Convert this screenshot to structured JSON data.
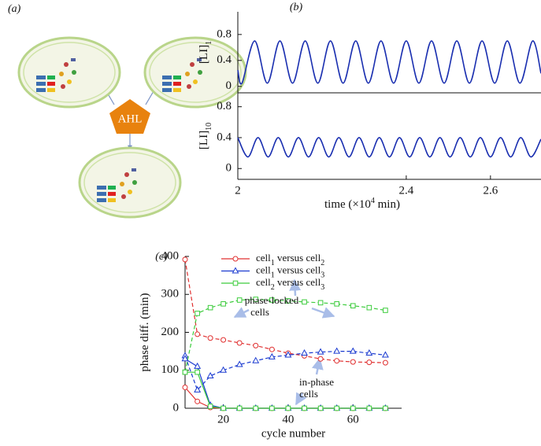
{
  "diagram": {
    "label": "(a)",
    "hub": "AHL"
  },
  "chart_data": [
    {
      "type": "line",
      "panel_label": "(b)",
      "ylabel": "[LI]1",
      "smooth": true,
      "xlim": [
        2.0,
        2.72
      ],
      "ylim": [
        -0.1,
        1.15
      ],
      "yticks": [
        0,
        0.4,
        0.8
      ],
      "series": [
        {
          "color": "#1a2fb0",
          "x": [
            2.0,
            2.01,
            2.04,
            2.07,
            2.1,
            2.13,
            2.16,
            2.19,
            2.22,
            2.25,
            2.28,
            2.31,
            2.34,
            2.37,
            2.4,
            2.43,
            2.46,
            2.49,
            2.52,
            2.55,
            2.58,
            2.61,
            2.64,
            2.67,
            2.7,
            2.72
          ],
          "values": [
            0.25,
            0.05,
            0.7,
            0.05,
            0.7,
            0.05,
            0.7,
            0.05,
            0.7,
            0.05,
            0.7,
            0.05,
            0.7,
            0.05,
            0.7,
            0.05,
            0.7,
            0.05,
            0.7,
            0.05,
            0.7,
            0.05,
            0.7,
            0.05,
            0.7,
            0.2
          ]
        }
      ]
    },
    {
      "type": "line",
      "ylabel": "[LI]10",
      "smooth": true,
      "xlabel": {
        "text": "time (×10",
        "sup": "4",
        "tail": " min)"
      },
      "xlim": [
        2.0,
        2.72
      ],
      "ylim": [
        -0.14,
        0.98
      ],
      "yticks": [
        0,
        0.4,
        0.8
      ],
      "xticks": [
        2.0,
        2.4,
        2.6
      ],
      "series": [
        {
          "color": "#1a2fb0",
          "x": [
            2.0,
            2.024,
            2.048,
            2.072,
            2.096,
            2.12,
            2.144,
            2.168,
            2.192,
            2.216,
            2.24,
            2.264,
            2.288,
            2.312,
            2.336,
            2.36,
            2.384,
            2.408,
            2.432,
            2.456,
            2.48,
            2.504,
            2.528,
            2.552,
            2.576,
            2.6,
            2.624,
            2.648,
            2.672,
            2.696,
            2.72
          ],
          "values": [
            0.4,
            0.15,
            0.4,
            0.15,
            0.4,
            0.15,
            0.4,
            0.15,
            0.4,
            0.15,
            0.4,
            0.15,
            0.4,
            0.15,
            0.4,
            0.15,
            0.4,
            0.15,
            0.4,
            0.15,
            0.4,
            0.15,
            0.4,
            0.15,
            0.4,
            0.15,
            0.4,
            0.15,
            0.4,
            0.15,
            0.38
          ]
        }
      ]
    },
    {
      "type": "line",
      "panel_label": "(c)",
      "ylabel": "phase diff. (min)",
      "xlabel": "cycle number",
      "xlim": [
        8.2,
        75
      ],
      "ylim": [
        0,
        400
      ],
      "yticks": [
        0,
        100,
        200,
        300,
        400
      ],
      "xticks": [
        20,
        40,
        60
      ],
      "x": [
        8.2,
        12,
        16,
        20,
        25,
        30,
        35,
        40,
        45,
        50,
        55,
        60,
        65,
        70
      ],
      "annotations": [
        [
          "phase-locked",
          "cells"
        ],
        [
          "in-phase",
          "cells"
        ]
      ],
      "series": [
        {
          "name": "cell1 versus cell2",
          "color": "#e03030",
          "marker": "circle",
          "line_style": "dashed",
          "values": [
            392,
            195,
            185,
            180,
            172,
            165,
            155,
            145,
            138,
            130,
            125,
            122,
            121,
            120
          ]
        },
        {
          "name": "cell1 versus cell3",
          "color": "#1a3ad0",
          "marker": "triangle",
          "line_style": "dashed",
          "values": [
            138,
            48,
            85,
            100,
            115,
            125,
            135,
            140,
            145,
            148,
            150,
            150,
            145,
            140
          ]
        },
        {
          "name": "cell2 versus cell3",
          "color": "#3ccc3c",
          "marker": "square",
          "line_style": "dashed",
          "values": [
            95,
            250,
            265,
            275,
            285,
            287,
            285,
            283,
            280,
            278,
            275,
            270,
            265,
            258
          ]
        },
        {
          "color": "#e03030",
          "marker": "circle",
          "line_style": "solid",
          "values": [
            55,
            18,
            2,
            0,
            0,
            0,
            0,
            0,
            0,
            0,
            0,
            0,
            0,
            0
          ]
        },
        {
          "color": "#1a3ad0",
          "marker": "triangle",
          "line_style": "solid",
          "values": [
            130,
            110,
            8,
            0,
            0,
            0,
            0,
            0,
            0,
            0,
            0,
            0,
            0,
            0
          ]
        },
        {
          "color": "#3ccc3c",
          "marker": "square",
          "line_style": "solid",
          "values": [
            95,
            95,
            5,
            0,
            0,
            0,
            0,
            0,
            0,
            0,
            0,
            0,
            0,
            0
          ]
        }
      ]
    }
  ]
}
